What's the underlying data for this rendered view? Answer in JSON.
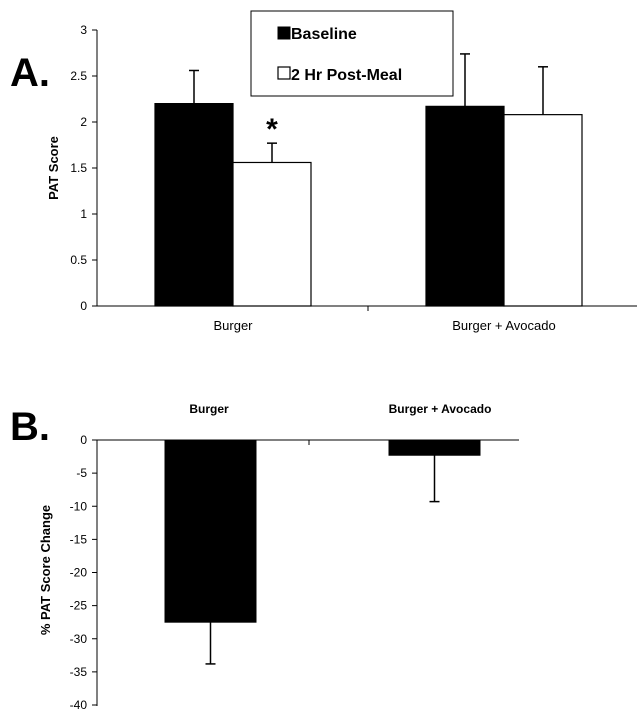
{
  "chart_data": [
    {
      "type": "bar",
      "panel_label": "A.",
      "categories": [
        "Burger",
        "Burger + Avocado"
      ],
      "series": [
        {
          "name": "Baseline",
          "values": [
            2.2,
            2.17
          ],
          "errors": [
            0.36,
            0.57
          ],
          "color": "#000000"
        },
        {
          "name": "2 Hr Post-Meal",
          "values": [
            1.56,
            2.08
          ],
          "errors": [
            0.21,
            0.52
          ],
          "color": "#ffffff"
        }
      ],
      "ylabel": "PAT Score",
      "ylim": [
        0,
        3
      ],
      "yticks": [
        "0",
        "0.5",
        "1",
        "1.5",
        "2",
        "2.5",
        "3"
      ],
      "annotation": "*",
      "legend_position": "top-center",
      "grid": false
    },
    {
      "type": "bar",
      "panel_label": "B.",
      "categories": [
        "Burger",
        "Burger + Avocado"
      ],
      "values": [
        -27.5,
        -2.3
      ],
      "errors": [
        6.3,
        7.0
      ],
      "color": "#000000",
      "ylabel": "% PAT Score Change",
      "ylim": [
        -40,
        0
      ],
      "yticks": [
        "0",
        "-5",
        "-10",
        "-15",
        "-20",
        "-25",
        "-30",
        "-35",
        "-40"
      ],
      "grid": false
    }
  ]
}
